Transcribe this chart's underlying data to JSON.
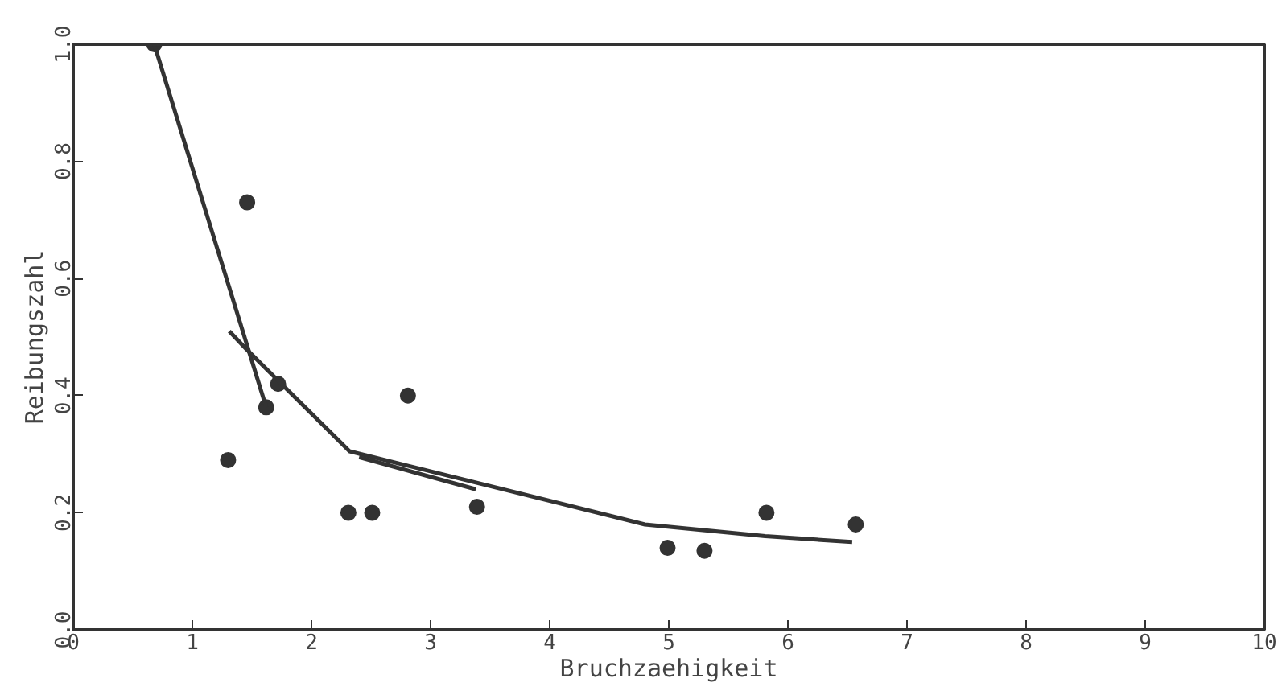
{
  "chart_data": {
    "type": "line",
    "xlabel": "Bruchzaehigkeit",
    "ylabel": "Reibungszahl",
    "xlim": [
      0,
      10
    ],
    "ylim": [
      0,
      1.0
    ],
    "xticks": [
      0,
      1,
      2,
      3,
      4,
      5,
      6,
      7,
      8,
      9,
      10
    ],
    "yticks": [
      {
        "value": 0,
        "label": "0.0"
      },
      0.2,
      0.4,
      0.6,
      0.8,
      {
        "value": 1,
        "label": "1.0"
      }
    ],
    "grid": false,
    "series": [
      {
        "type": "scatter",
        "color": "#333333",
        "marker": "circle",
        "x": [
          0.68,
          1.46,
          1.3,
          1.62,
          1.72,
          2.31,
          2.51,
          2.81,
          3.39,
          4.99,
          5.3,
          5.82,
          6.57
        ],
        "values": [
          1.0,
          0.73,
          0.29,
          0.38,
          0.42,
          0.2,
          0.2,
          0.4,
          0.21,
          0.14,
          0.135,
          0.2,
          0.18
        ]
      },
      {
        "color": "#333333",
        "marker": "none",
        "line_style": "solid",
        "x": [
          0.68,
          1.62
        ],
        "values": [
          1.0,
          0.38
        ]
      },
      {
        "color": "#333333",
        "marker": "none",
        "line_style": "solid",
        "x": [
          1.31,
          1.45,
          2.32,
          4.8,
          5.81,
          6.54
        ],
        "values": [
          0.51,
          0.48,
          0.305,
          0.18,
          0.16,
          0.15
        ]
      },
      {
        "color": "#333333",
        "marker": "none",
        "line_style": "solid",
        "x": [
          2.4,
          3.38
        ],
        "values": [
          0.295,
          0.24
        ]
      }
    ]
  }
}
